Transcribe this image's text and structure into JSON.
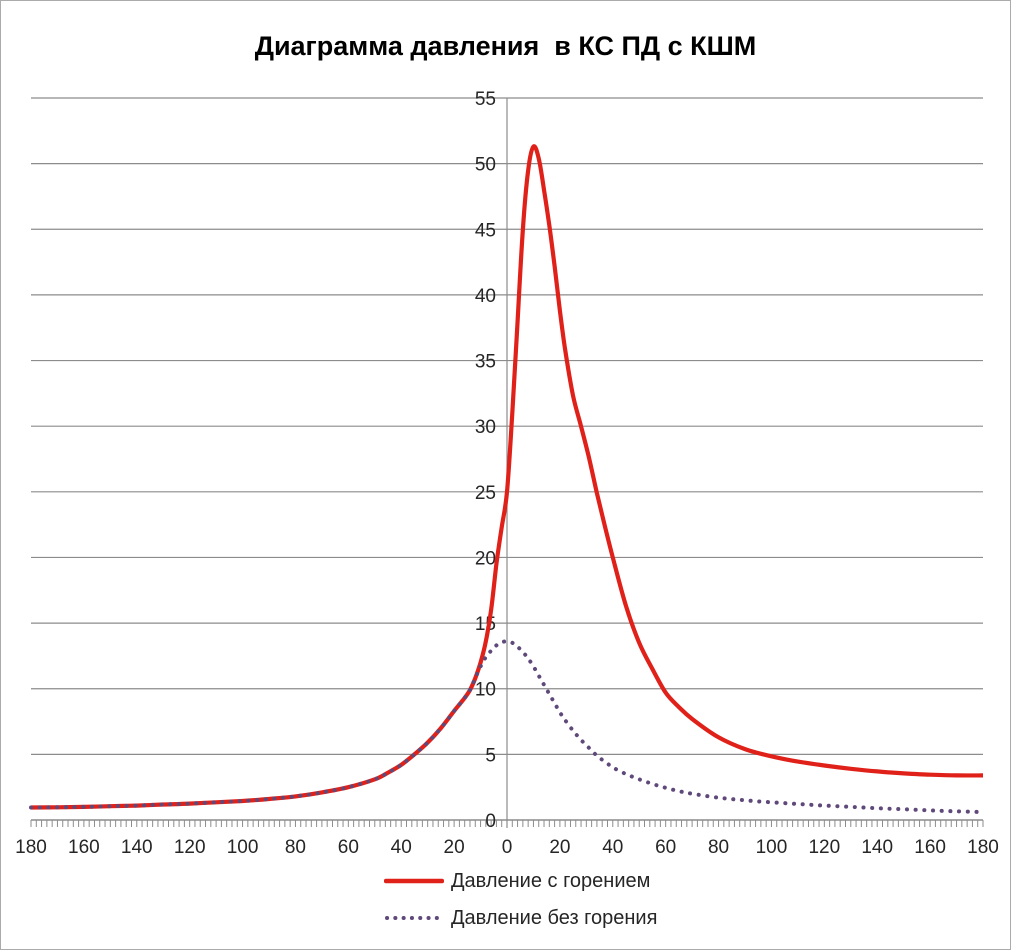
{
  "window": {
    "background": "#ffffff",
    "border_color": "#ababab"
  },
  "chart_data": {
    "type": "line",
    "title": "Диаграмма давления  в КС ПД с КШМ",
    "xlabel": "",
    "ylabel": "",
    "grid": "horizontal",
    "legend_position": "bottom",
    "x_axis": {
      "range": [
        -180,
        180
      ],
      "tick_values": [
        -180,
        -160,
        -140,
        -120,
        -100,
        -80,
        -60,
        -40,
        -20,
        0,
        20,
        40,
        60,
        80,
        100,
        120,
        140,
        160,
        180
      ],
      "tick_labels": [
        "180",
        "160",
        "140",
        "120",
        "100",
        "80",
        "60",
        "40",
        "20",
        "0",
        "20",
        "40",
        "60",
        "80",
        "100",
        "120",
        "140",
        "160",
        "180"
      ],
      "minor_tick_step": 2
    },
    "y_axis": {
      "range": [
        0,
        55
      ],
      "tick_values": [
        0,
        5,
        10,
        15,
        20,
        25,
        30,
        35,
        40,
        45,
        50,
        55
      ],
      "tick_labels": [
        "0",
        "5",
        "10",
        "15",
        "20",
        "25",
        "30",
        "35",
        "40",
        "45",
        "50",
        "55"
      ]
    },
    "colors": {
      "gridline": "#8c8c8c",
      "axis": "#8c8c8c",
      "tick_label": "#262626",
      "title": "#000000"
    },
    "series": [
      {
        "name": "Давление с горением",
        "style": "solid",
        "color": "#e0211a",
        "points": [
          [
            -180,
            0.95
          ],
          [
            -170,
            0.97
          ],
          [
            -160,
            1.0
          ],
          [
            -150,
            1.05
          ],
          [
            -140,
            1.1
          ],
          [
            -130,
            1.18
          ],
          [
            -120,
            1.25
          ],
          [
            -110,
            1.35
          ],
          [
            -100,
            1.45
          ],
          [
            -90,
            1.6
          ],
          [
            -80,
            1.8
          ],
          [
            -70,
            2.1
          ],
          [
            -60,
            2.5
          ],
          [
            -50,
            3.1
          ],
          [
            -45,
            3.6
          ],
          [
            -40,
            4.2
          ],
          [
            -35,
            5.0
          ],
          [
            -30,
            5.9
          ],
          [
            -25,
            7.0
          ],
          [
            -20,
            8.3
          ],
          [
            -18,
            8.8
          ],
          [
            -16,
            9.3
          ],
          [
            -14,
            9.9
          ],
          [
            -12,
            10.8
          ],
          [
            -10,
            12.0
          ],
          [
            -8,
            13.6
          ],
          [
            -6,
            16.0
          ],
          [
            -4,
            19.5
          ],
          [
            -2,
            22.3
          ],
          [
            0,
            25.0
          ],
          [
            2,
            31.0
          ],
          [
            4,
            38.0
          ],
          [
            6,
            45.0
          ],
          [
            8,
            49.5
          ],
          [
            10,
            51.3
          ],
          [
            12,
            50.4
          ],
          [
            14,
            48.0
          ],
          [
            16,
            45.3
          ],
          [
            18,
            42.2
          ],
          [
            20,
            38.8
          ],
          [
            22,
            35.8
          ],
          [
            25,
            32.3
          ],
          [
            28,
            30.0
          ],
          [
            31,
            27.6
          ],
          [
            34,
            24.9
          ],
          [
            37,
            22.4
          ],
          [
            40,
            20.0
          ],
          [
            45,
            16.3
          ],
          [
            50,
            13.5
          ],
          [
            55,
            11.5
          ],
          [
            60,
            9.7
          ],
          [
            65,
            8.6
          ],
          [
            70,
            7.7
          ],
          [
            80,
            6.3
          ],
          [
            90,
            5.4
          ],
          [
            100,
            4.85
          ],
          [
            110,
            4.45
          ],
          [
            120,
            4.15
          ],
          [
            130,
            3.9
          ],
          [
            140,
            3.7
          ],
          [
            150,
            3.55
          ],
          [
            160,
            3.45
          ],
          [
            170,
            3.4
          ],
          [
            180,
            3.4
          ]
        ]
      },
      {
        "name": "Давление без горения",
        "style": "dotted",
        "color": "#5f497a",
        "points": [
          [
            -180,
            0.95
          ],
          [
            -170,
            0.97
          ],
          [
            -160,
            1.0
          ],
          [
            -150,
            1.05
          ],
          [
            -140,
            1.1
          ],
          [
            -130,
            1.18
          ],
          [
            -120,
            1.25
          ],
          [
            -110,
            1.35
          ],
          [
            -100,
            1.45
          ],
          [
            -90,
            1.6
          ],
          [
            -80,
            1.8
          ],
          [
            -70,
            2.1
          ],
          [
            -60,
            2.5
          ],
          [
            -50,
            3.1
          ],
          [
            -45,
            3.6
          ],
          [
            -40,
            4.2
          ],
          [
            -35,
            5.0
          ],
          [
            -30,
            5.9
          ],
          [
            -25,
            7.0
          ],
          [
            -20,
            8.3
          ],
          [
            -18,
            8.8
          ],
          [
            -16,
            9.3
          ],
          [
            -14,
            9.9
          ],
          [
            -12,
            10.8
          ],
          [
            -10,
            11.7
          ],
          [
            -8,
            12.4
          ],
          [
            -6,
            12.9
          ],
          [
            -4,
            13.3
          ],
          [
            -2,
            13.55
          ],
          [
            0,
            13.6
          ],
          [
            2,
            13.5
          ],
          [
            4,
            13.2
          ],
          [
            6,
            12.8
          ],
          [
            8,
            12.3
          ],
          [
            10,
            11.7
          ],
          [
            12,
            11.0
          ],
          [
            14,
            10.3
          ],
          [
            16,
            9.6
          ],
          [
            18,
            8.9
          ],
          [
            20,
            8.2
          ],
          [
            22,
            7.6
          ],
          [
            25,
            6.8
          ],
          [
            28,
            6.1
          ],
          [
            30,
            5.7
          ],
          [
            34,
            4.9
          ],
          [
            38,
            4.3
          ],
          [
            40,
            4.0
          ],
          [
            45,
            3.5
          ],
          [
            50,
            3.1
          ],
          [
            55,
            2.75
          ],
          [
            60,
            2.45
          ],
          [
            65,
            2.2
          ],
          [
            70,
            2.0
          ],
          [
            80,
            1.7
          ],
          [
            90,
            1.5
          ],
          [
            100,
            1.35
          ],
          [
            110,
            1.22
          ],
          [
            120,
            1.1
          ],
          [
            130,
            1.0
          ],
          [
            140,
            0.9
          ],
          [
            150,
            0.82
          ],
          [
            160,
            0.73
          ],
          [
            170,
            0.66
          ],
          [
            180,
            0.6
          ]
        ]
      }
    ]
  }
}
